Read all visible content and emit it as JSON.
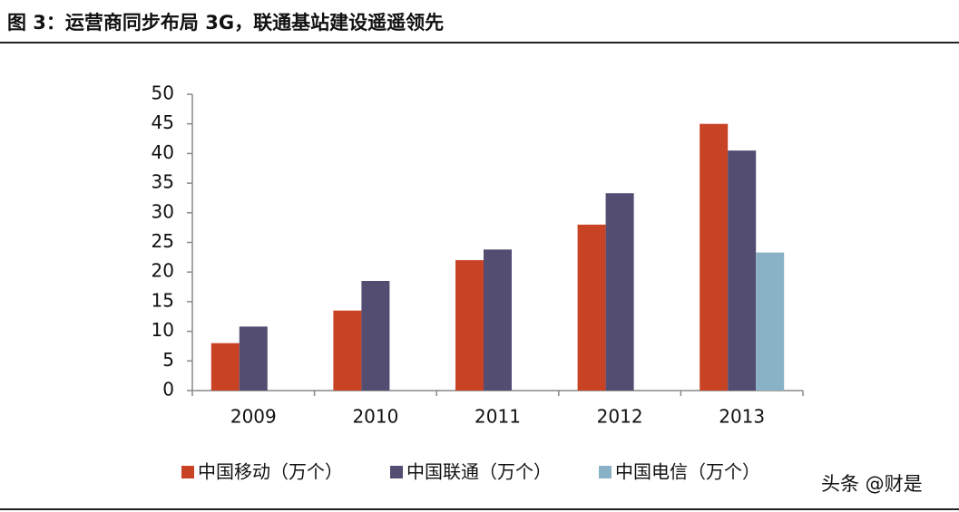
{
  "chart_data": {
    "type": "bar",
    "title": "图 3：运营商同步布局 3G，联通基站建设遥遥领先",
    "categories": [
      "2009",
      "2010",
      "2011",
      "2012",
      "2013"
    ],
    "series": [
      {
        "name": "中国移动（万个）",
        "color": "#c84224",
        "values": [
          8,
          13.5,
          22,
          28,
          45
        ]
      },
      {
        "name": "中国联通（万个）",
        "color": "#544d72",
        "values": [
          10.8,
          18.5,
          23.8,
          33.3,
          40.5
        ]
      },
      {
        "name": "中国电信（万个）",
        "color": "#8ab2c6",
        "values": [
          null,
          null,
          null,
          null,
          23.3
        ]
      }
    ],
    "ylim": [
      0,
      50
    ],
    "yticks": [
      0,
      5,
      10,
      15,
      20,
      25,
      30,
      35,
      40,
      45,
      50
    ],
    "grid": false,
    "legend": "bottom",
    "watermark": "头条 @财是"
  }
}
